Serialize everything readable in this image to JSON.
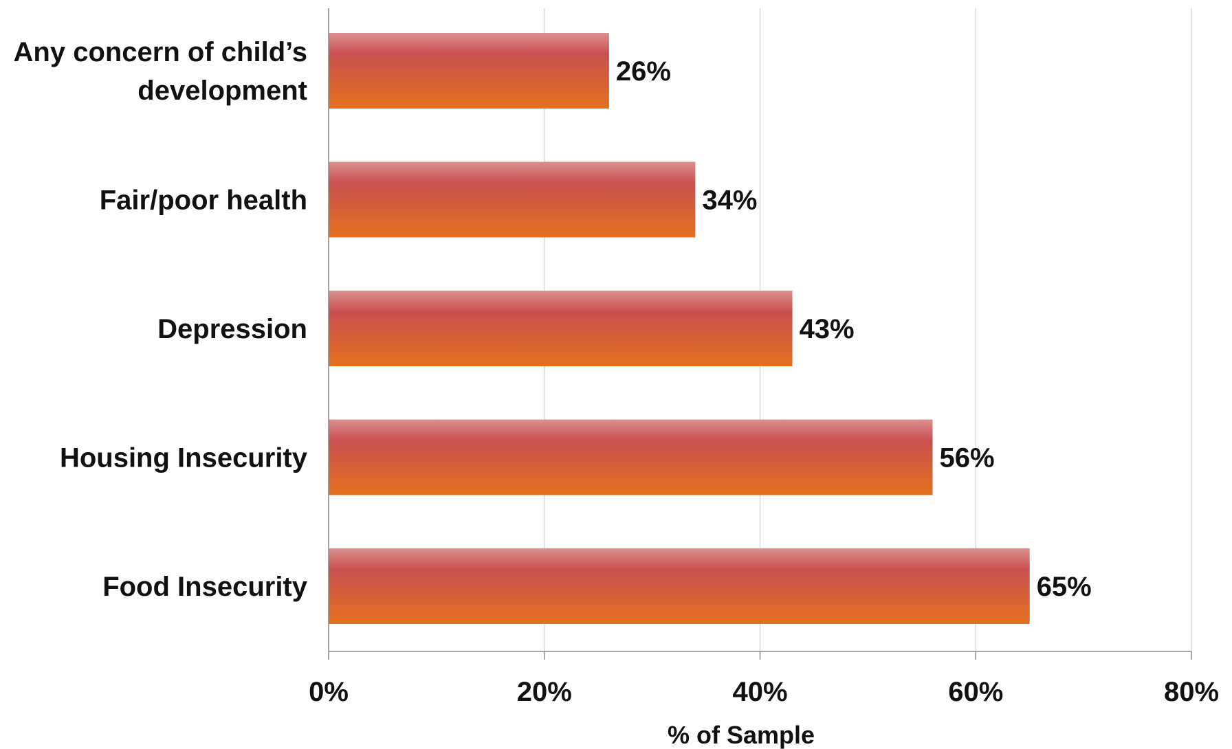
{
  "chart_data": {
    "type": "bar",
    "orientation": "horizontal",
    "categories": [
      [
        "Any concern of child’s",
        "development"
      ],
      [
        "Fair/poor health"
      ],
      [
        "Depression"
      ],
      [
        "Housing Insecurity"
      ],
      [
        "Food Insecurity"
      ]
    ],
    "values": [
      26,
      34,
      43,
      56,
      65
    ],
    "data_labels": [
      "26%",
      "34%",
      "43%",
      "56%",
      "65%"
    ],
    "xlim": [
      0,
      80
    ],
    "xticks": [
      0,
      20,
      40,
      60,
      80
    ],
    "xtick_labels": [
      "0%",
      "20%",
      "40%",
      "60%",
      "80%"
    ],
    "xlabel": "% of Sample",
    "ylabel": "",
    "title": "",
    "grid": "vertical",
    "legend": "none",
    "colors": {
      "bar_top": "#dc8f8f",
      "bar_mid": "#c8504f",
      "bar_bottom": "#e4701e",
      "grid": "#d9d9d9",
      "axis": "#888888",
      "text": "#111111"
    }
  }
}
